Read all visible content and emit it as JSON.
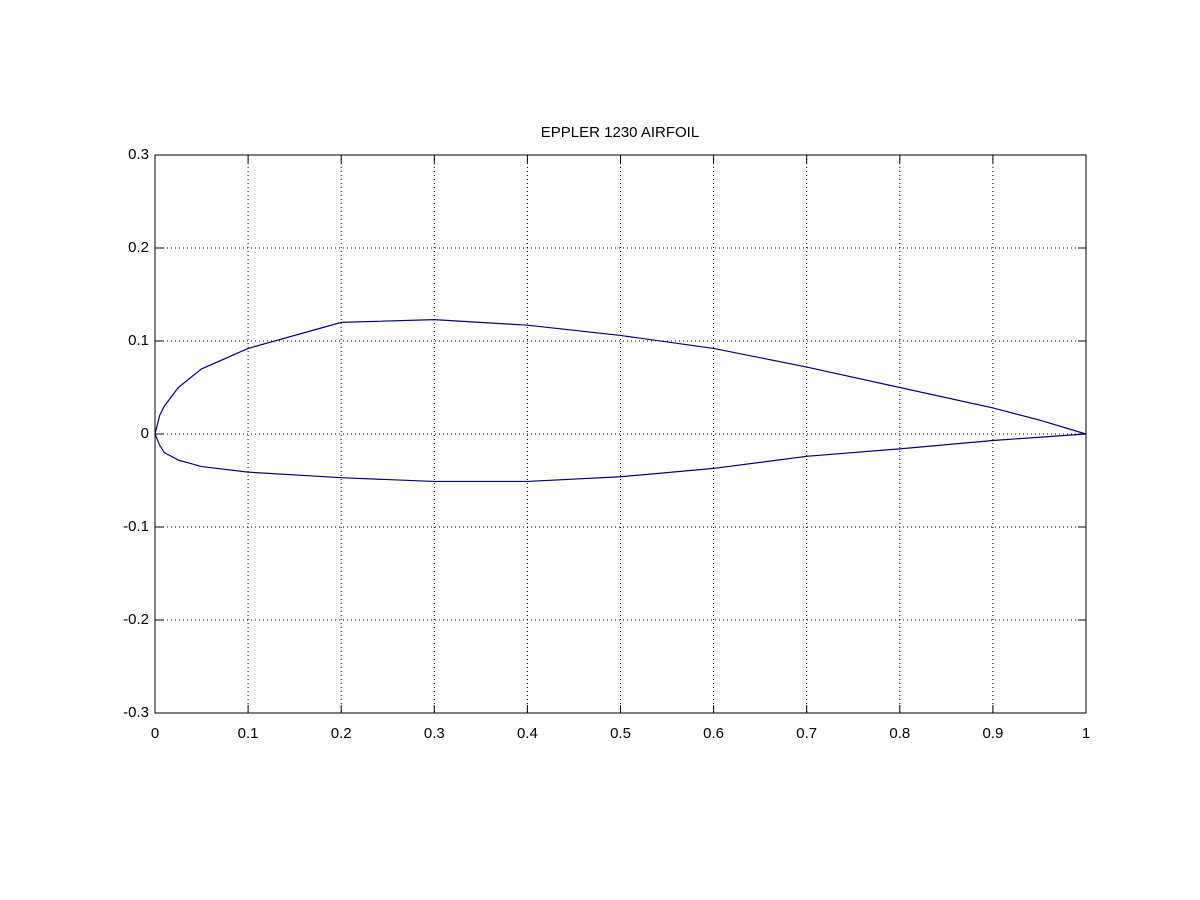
{
  "chart_data": {
    "type": "line",
    "title": "EPPLER 1230 AIRFOIL",
    "x": [
      1,
      0.95,
      0.9,
      0.8,
      0.7,
      0.6,
      0.5,
      0.4,
      0.3,
      0.2,
      0.1,
      0.05,
      0.025,
      0.01,
      0.005,
      0,
      0.005,
      0.01,
      0.025,
      0.05,
      0.1,
      0.2,
      0.3,
      0.4,
      0.5,
      0.6,
      0.7,
      0.8,
      0.9,
      1
    ],
    "series": [
      {
        "color": "#000080",
        "values": [
          0,
          0.015,
          0.028,
          0.05,
          0.072,
          0.092,
          0.106,
          0.117,
          0.123,
          0.12,
          0.092,
          0.07,
          0.05,
          0.03,
          0.02,
          0,
          -0.012,
          -0.02,
          -0.028,
          -0.035,
          -0.041,
          -0.047,
          -0.051,
          -0.051,
          -0.046,
          -0.037,
          -0.024,
          -0.016,
          -0.007,
          0
        ]
      }
    ],
    "xlim": [
      0,
      1
    ],
    "ylim": [
      -0.3,
      0.3
    ],
    "xticks": [
      0,
      0.1,
      0.2,
      0.3,
      0.4,
      0.5,
      0.6,
      0.7,
      0.8,
      0.9,
      1
    ],
    "yticks": [
      -0.3,
      -0.2,
      -0.1,
      0,
      0.1,
      0.2,
      0.3
    ],
    "grid": true
  }
}
